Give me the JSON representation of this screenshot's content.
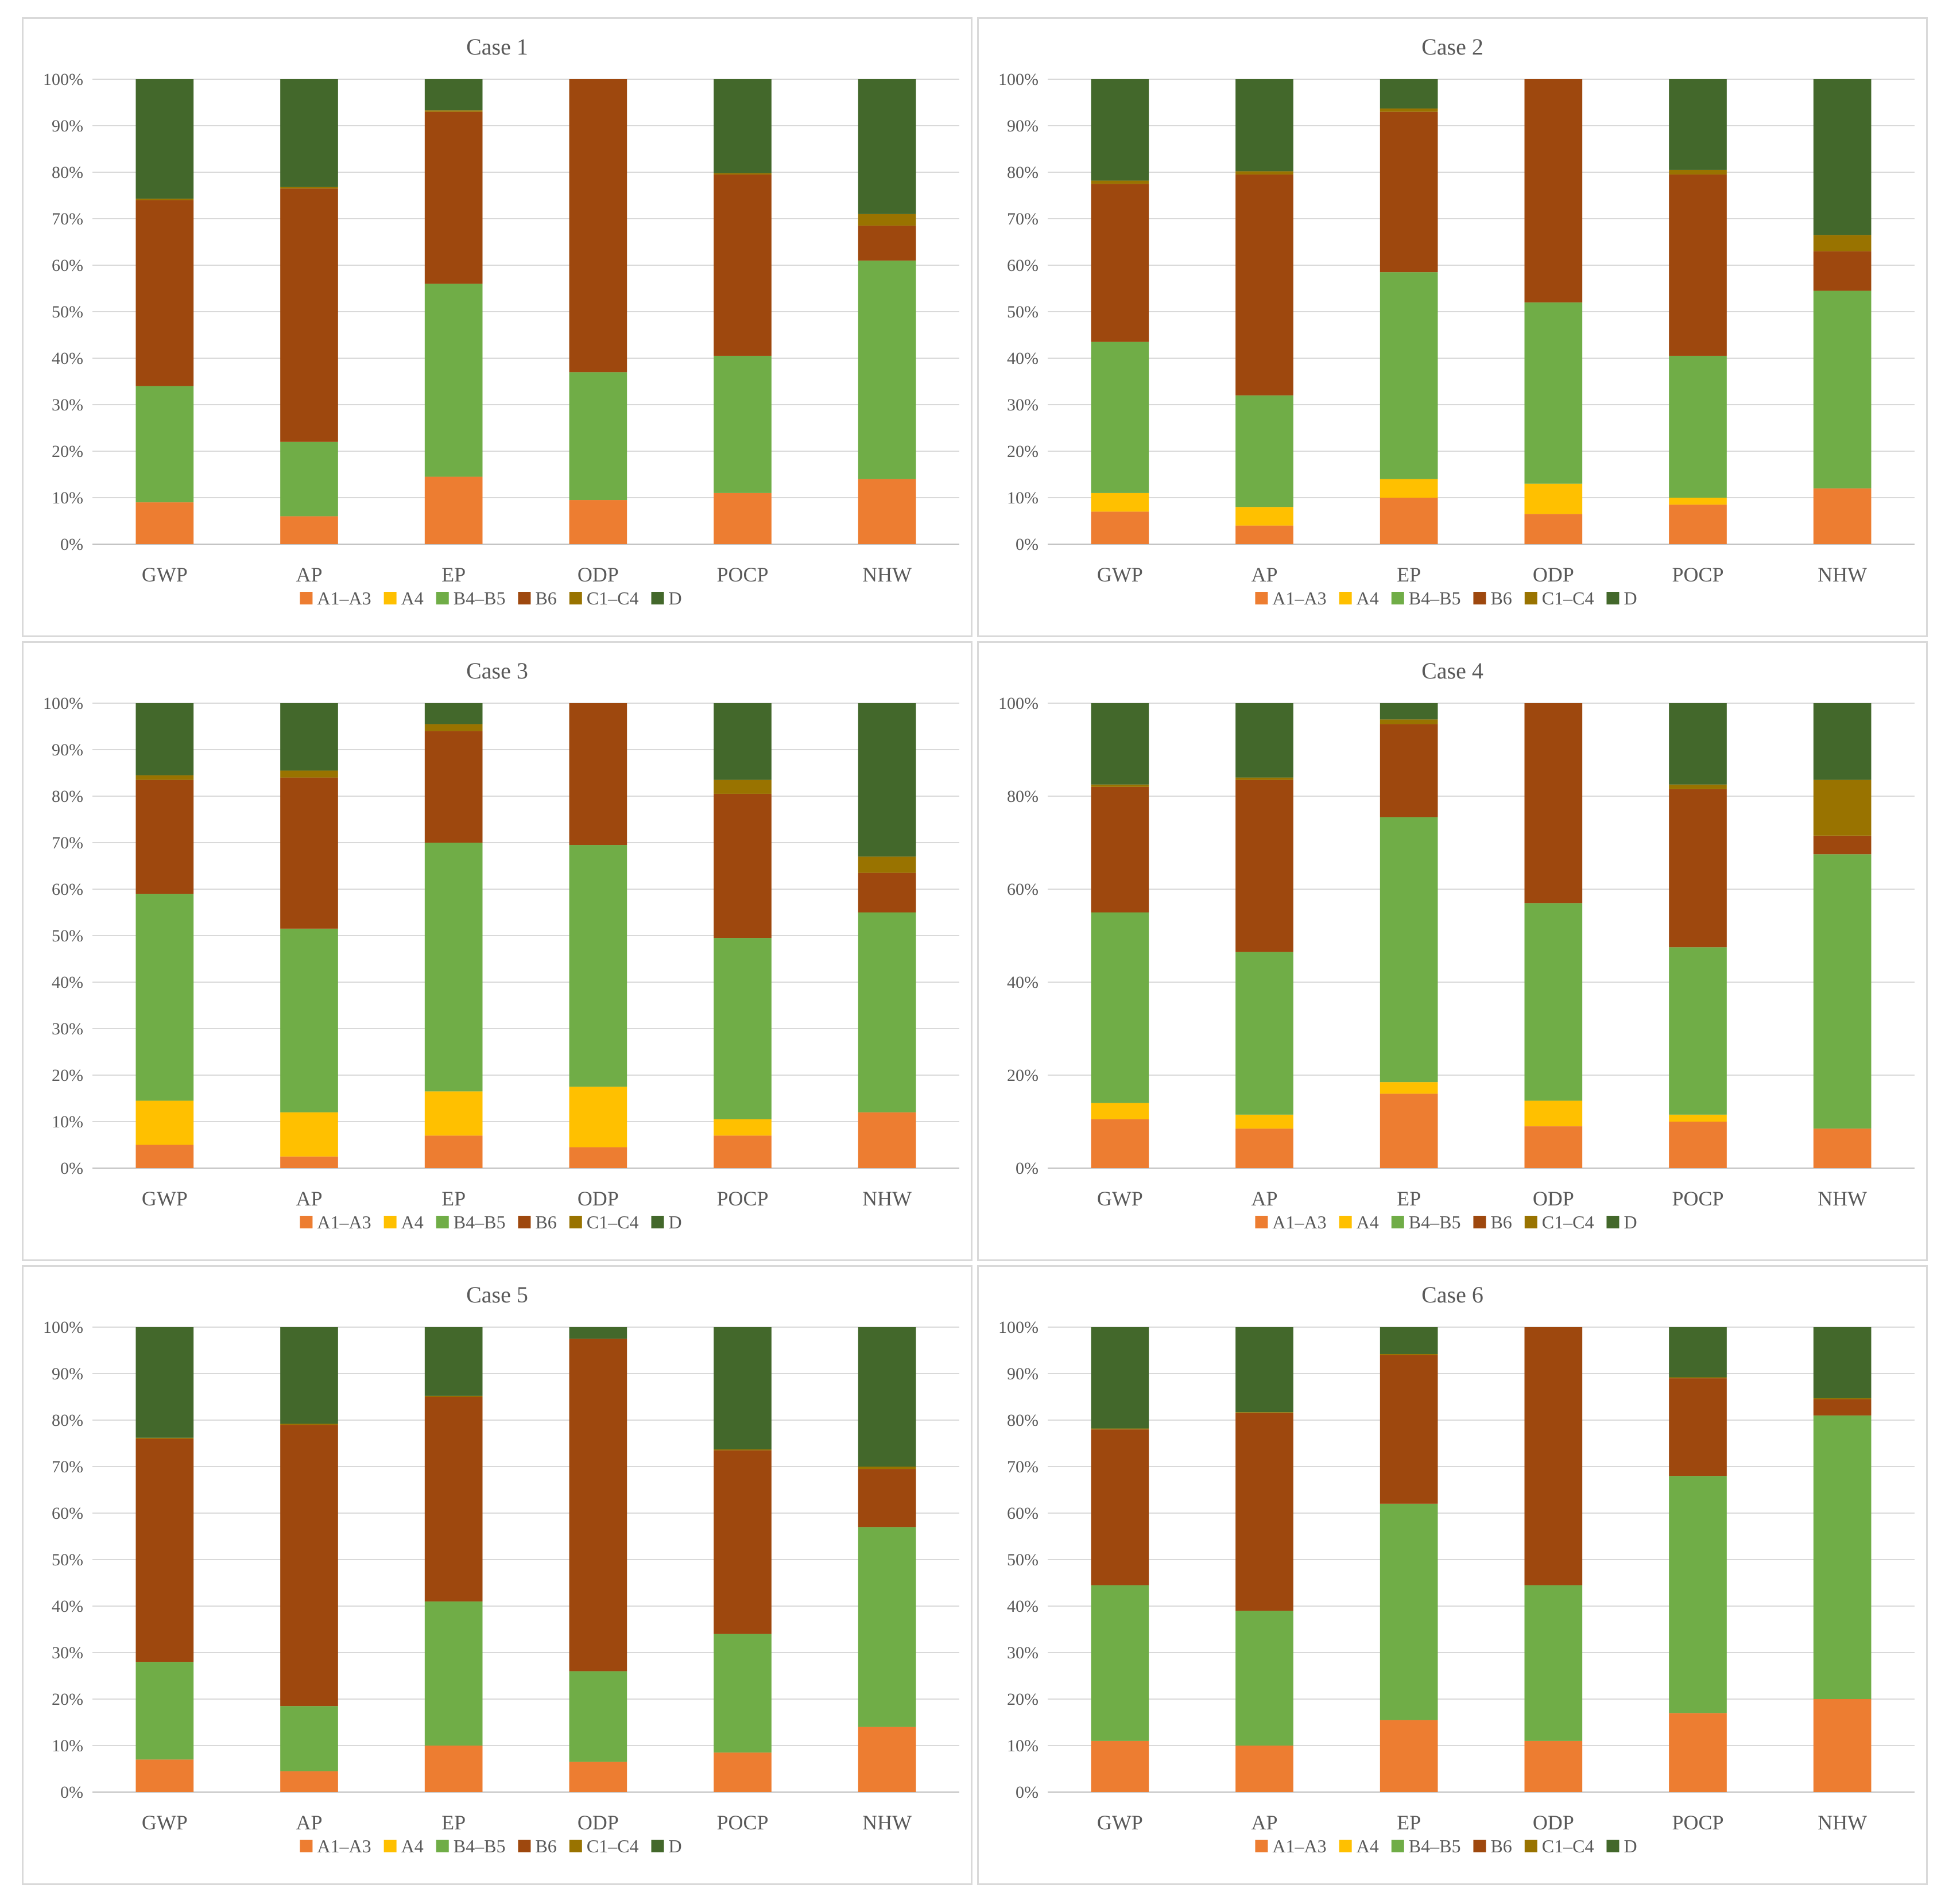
{
  "figure": {
    "segment_order": [
      "A1–A3",
      "A4",
      "B4–B5",
      "B6",
      "C1–C4",
      "D"
    ],
    "colors": {
      "A1–A3": "#ED7D31",
      "A4": "#FFC000",
      "B4–B5": "#70AD47",
      "B6": "#9E480E",
      "C1–C4": "#997300",
      "D": "#43682B"
    }
  },
  "chart_data": [
    {
      "type": "bar",
      "stacked": "percent",
      "title": "Case 1",
      "categories": [
        "GWP",
        "AP",
        "EP",
        "ODP",
        "POCP",
        "NHW"
      ],
      "y_ticks": [
        "0%",
        "10%",
        "20%",
        "30%",
        "40%",
        "50%",
        "60%",
        "70%",
        "80%",
        "90%",
        "100%"
      ],
      "ylim": [
        0,
        100
      ],
      "legend": "bottom",
      "series": [
        {
          "name": "A1–A3",
          "values": [
            9,
            6,
            14.5,
            9.5,
            11,
            14
          ]
        },
        {
          "name": "A4",
          "values": [
            0,
            0,
            0,
            0,
            0,
            0
          ]
        },
        {
          "name": "B4–B5",
          "values": [
            25,
            16,
            41.5,
            27.5,
            29.5,
            47
          ]
        },
        {
          "name": "B6",
          "values": [
            40,
            54.5,
            37,
            63,
            39,
            7.5
          ]
        },
        {
          "name": "C1–C4",
          "values": [
            0.3,
            0.3,
            0.3,
            0,
            0.3,
            2.5
          ]
        },
        {
          "name": "D",
          "values": [
            25.7,
            23.2,
            6.7,
            0,
            20.2,
            29
          ]
        }
      ]
    },
    {
      "type": "bar",
      "stacked": "percent",
      "title": "Case 2",
      "categories": [
        "GWP",
        "AP",
        "EP",
        "ODP",
        "POCP",
        "NHW"
      ],
      "y_ticks": [
        "0%",
        "10%",
        "20%",
        "30%",
        "40%",
        "50%",
        "60%",
        "70%",
        "80%",
        "90%",
        "100%"
      ],
      "ylim": [
        0,
        100
      ],
      "legend": "bottom",
      "series": [
        {
          "name": "A1–A3",
          "values": [
            7,
            4,
            10,
            6.5,
            8.5,
            12
          ]
        },
        {
          "name": "A4",
          "values": [
            4,
            4,
            4,
            6.5,
            1.5,
            0
          ]
        },
        {
          "name": "B4–B5",
          "values": [
            32.5,
            24,
            44.5,
            39,
            30.5,
            42.5
          ]
        },
        {
          "name": "B6",
          "values": [
            34,
            47.5,
            34.5,
            48,
            39,
            8.5
          ]
        },
        {
          "name": "C1–C4",
          "values": [
            0.7,
            0.7,
            0.7,
            0,
            1,
            3.5
          ]
        },
        {
          "name": "D",
          "values": [
            21.8,
            19.8,
            6.3,
            0,
            19.5,
            33.5
          ]
        }
      ]
    },
    {
      "type": "bar",
      "stacked": "percent",
      "title": "Case 3",
      "categories": [
        "GWP",
        "AP",
        "EP",
        "ODP",
        "POCP",
        "NHW"
      ],
      "y_ticks": [
        "0%",
        "10%",
        "20%",
        "30%",
        "40%",
        "50%",
        "60%",
        "70%",
        "80%",
        "90%",
        "100%"
      ],
      "ylim": [
        0,
        100
      ],
      "legend": "bottom",
      "series": [
        {
          "name": "A1–A3",
          "values": [
            5,
            2.5,
            7,
            4.5,
            7,
            12
          ]
        },
        {
          "name": "A4",
          "values": [
            9.5,
            9.5,
            9.5,
            13,
            3.5,
            0
          ]
        },
        {
          "name": "B4–B5",
          "values": [
            44.5,
            39.5,
            53.5,
            52,
            39,
            43
          ]
        },
        {
          "name": "B6",
          "values": [
            24.5,
            32.5,
            24,
            30.5,
            31,
            8.5
          ]
        },
        {
          "name": "C1–C4",
          "values": [
            1,
            1.5,
            1.5,
            0,
            3,
            3.5
          ]
        },
        {
          "name": "D",
          "values": [
            15.5,
            14.5,
            4.5,
            0,
            16.5,
            33
          ]
        }
      ]
    },
    {
      "type": "bar",
      "stacked": "percent",
      "title": "Case 4",
      "categories": [
        "GWP",
        "AP",
        "EP",
        "ODP",
        "POCP",
        "NHW"
      ],
      "y_ticks": [
        "0%",
        "20%",
        "40%",
        "60%",
        "80%",
        "100%"
      ],
      "ylim": [
        0,
        100
      ],
      "legend": "bottom",
      "series": [
        {
          "name": "A1–A3",
          "values": [
            10.5,
            8.5,
            16,
            9,
            10,
            8.5
          ]
        },
        {
          "name": "A4",
          "values": [
            3.5,
            3,
            2.5,
            5.5,
            1.5,
            0
          ]
        },
        {
          "name": "B4–B5",
          "values": [
            41,
            35,
            57,
            42.5,
            36,
            59
          ]
        },
        {
          "name": "B6",
          "values": [
            27,
            37,
            20,
            43,
            34,
            4
          ]
        },
        {
          "name": "C1–C4",
          "values": [
            0.5,
            0.5,
            1,
            0,
            1,
            12
          ]
        },
        {
          "name": "D",
          "values": [
            17.5,
            16,
            3.5,
            0,
            17.5,
            16.5
          ]
        }
      ]
    },
    {
      "type": "bar",
      "stacked": "percent",
      "title": "Case 5",
      "categories": [
        "GWP",
        "AP",
        "EP",
        "ODP",
        "POCP",
        "NHW"
      ],
      "y_ticks": [
        "0%",
        "10%",
        "20%",
        "30%",
        "40%",
        "50%",
        "60%",
        "70%",
        "80%",
        "90%",
        "100%"
      ],
      "ylim": [
        0,
        100
      ],
      "legend": "bottom",
      "series": [
        {
          "name": "A1–A3",
          "values": [
            7,
            4.5,
            10,
            6.5,
            8.5,
            14
          ]
        },
        {
          "name": "A4",
          "values": [
            0,
            0,
            0,
            0,
            0,
            0
          ]
        },
        {
          "name": "B4–B5",
          "values": [
            21,
            14,
            31,
            19.5,
            25.5,
            43
          ]
        },
        {
          "name": "B6",
          "values": [
            48,
            60.5,
            44,
            71.5,
            39.5,
            12.5
          ]
        },
        {
          "name": "C1–C4",
          "values": [
            0.2,
            0.2,
            0.2,
            0,
            0.2,
            0.5
          ]
        },
        {
          "name": "D",
          "values": [
            23.8,
            20.8,
            14.8,
            2.5,
            26.3,
            30
          ]
        }
      ]
    },
    {
      "type": "bar",
      "stacked": "percent",
      "title": "Case 6",
      "categories": [
        "GWP",
        "AP",
        "EP",
        "ODP",
        "POCP",
        "NHW"
      ],
      "y_ticks": [
        "0%",
        "10%",
        "20%",
        "30%",
        "40%",
        "50%",
        "60%",
        "70%",
        "80%",
        "90%",
        "100%"
      ],
      "ylim": [
        0,
        100
      ],
      "legend": "bottom",
      "series": [
        {
          "name": "A1–A3",
          "values": [
            11,
            10,
            15.5,
            11,
            17,
            20
          ]
        },
        {
          "name": "A4",
          "values": [
            0,
            0,
            0,
            0,
            0,
            0
          ]
        },
        {
          "name": "B4–B5",
          "values": [
            33.5,
            29,
            46.5,
            33.5,
            51,
            61
          ]
        },
        {
          "name": "B6",
          "values": [
            33.5,
            42.5,
            32,
            55.5,
            21,
            3.5
          ]
        },
        {
          "name": "C1–C4",
          "values": [
            0.2,
            0.2,
            0.2,
            0,
            0.2,
            0.2
          ]
        },
        {
          "name": "D",
          "values": [
            21.8,
            18.3,
            5.8,
            0,
            10.8,
            15.3
          ]
        }
      ]
    }
  ]
}
